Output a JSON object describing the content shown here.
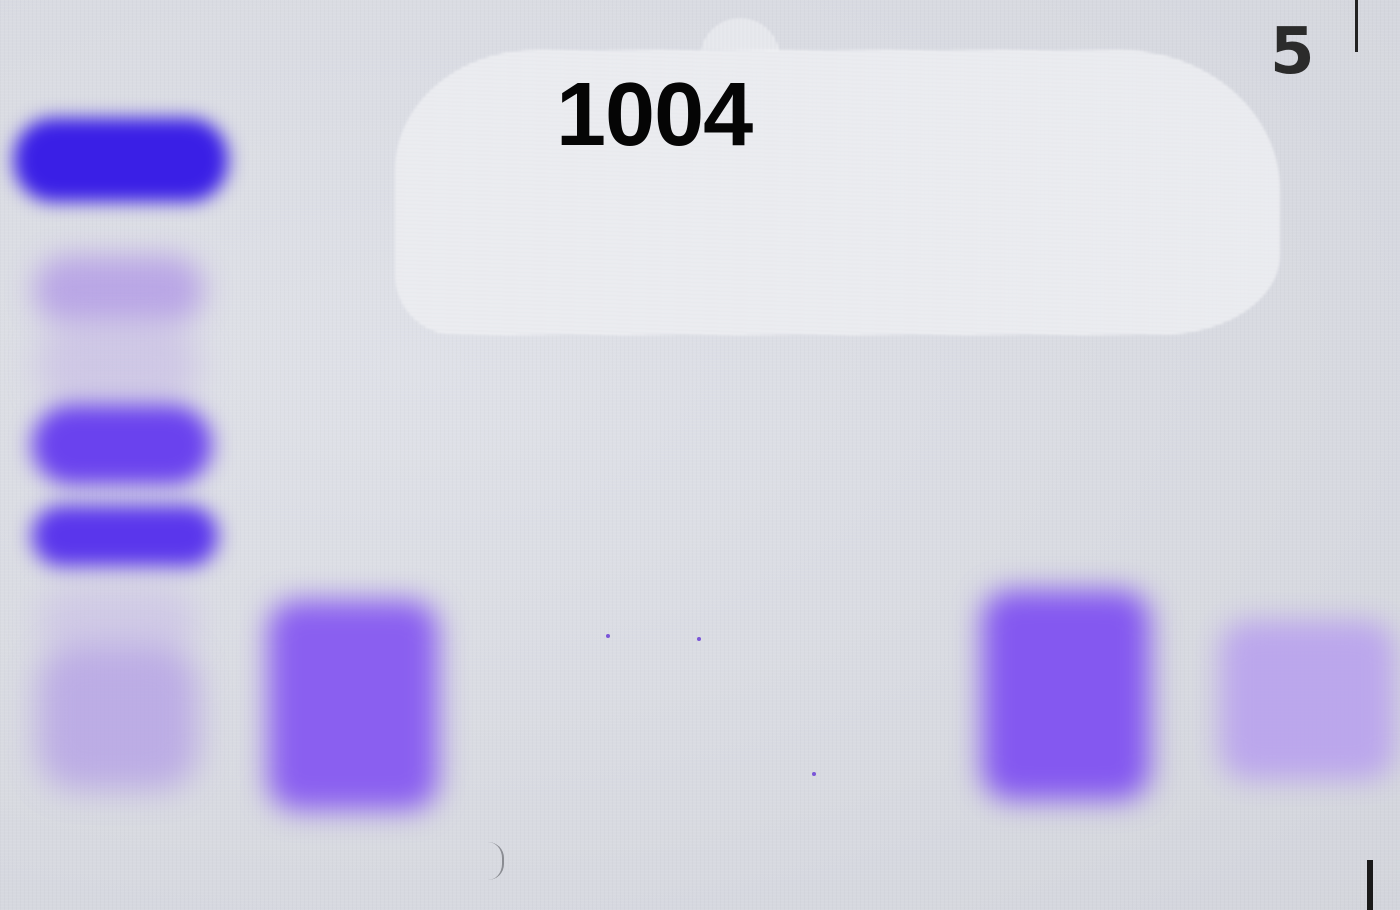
{
  "gel": {
    "number_label": "1004",
    "lane_mark": "5"
  },
  "colors": {
    "background": "#d9dbe2",
    "stain_dark": "#3a1fe6",
    "stain_medium": "#7a4fe8",
    "stain_light": "#a68ae8"
  }
}
